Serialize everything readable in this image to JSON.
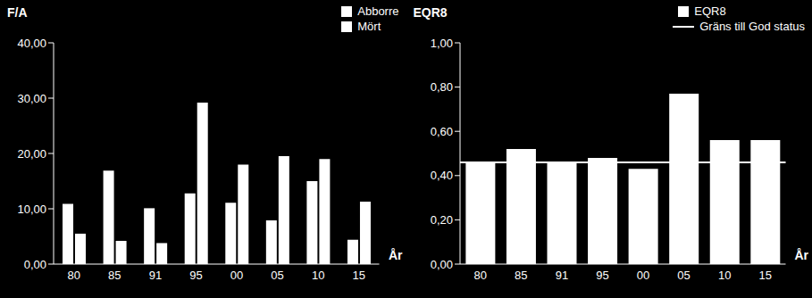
{
  "chart_data": [
    {
      "type": "bar",
      "y_label": "F/A",
      "x_label": "År",
      "categories": [
        "80",
        "85",
        "91",
        "95",
        "00",
        "05",
        "10",
        "15"
      ],
      "series": [
        {
          "name": "Abborre",
          "color": "#ffffff",
          "values": [
            10.9,
            16.9,
            10.1,
            12.8,
            11.1,
            7.9,
            15.0,
            4.4
          ]
        },
        {
          "name": "Mört",
          "color": "#ffffff",
          "values": [
            5.5,
            4.2,
            3.8,
            29.2,
            18.0,
            19.5,
            19.0,
            11.3
          ]
        }
      ],
      "ylim": [
        0,
        40
      ],
      "yticks": [
        {
          "value": 0,
          "label": "0,00"
        },
        {
          "value": 10,
          "label": "10,00"
        },
        {
          "value": 20,
          "label": "20,00"
        },
        {
          "value": 30,
          "label": "30,00"
        },
        {
          "value": 40,
          "label": "40,00"
        }
      ],
      "legend": "upper right"
    },
    {
      "type": "bar",
      "y_label": "EQR8",
      "x_label": "År",
      "categories": [
        "80",
        "85",
        "91",
        "95",
        "00",
        "05",
        "10",
        "15"
      ],
      "series": [
        {
          "name": "EQR8",
          "color": "#ffffff",
          "values": [
            0.46,
            0.52,
            0.46,
            0.48,
            0.43,
            0.77,
            0.56,
            0.56
          ]
        }
      ],
      "reference_line": {
        "name": "Gräns till God status",
        "color": "#ffffff",
        "value": 0.46
      },
      "ylim": [
        0,
        1
      ],
      "yticks": [
        {
          "value": 0,
          "label": "0,00"
        },
        {
          "value": 0.2,
          "label": "0,20"
        },
        {
          "value": 0.4,
          "label": "0,40"
        },
        {
          "value": 0.6,
          "label": "0,60"
        },
        {
          "value": 0.8,
          "label": "0,80"
        },
        {
          "value": 1,
          "label": "1,00"
        }
      ],
      "legend": "upper right"
    }
  ]
}
